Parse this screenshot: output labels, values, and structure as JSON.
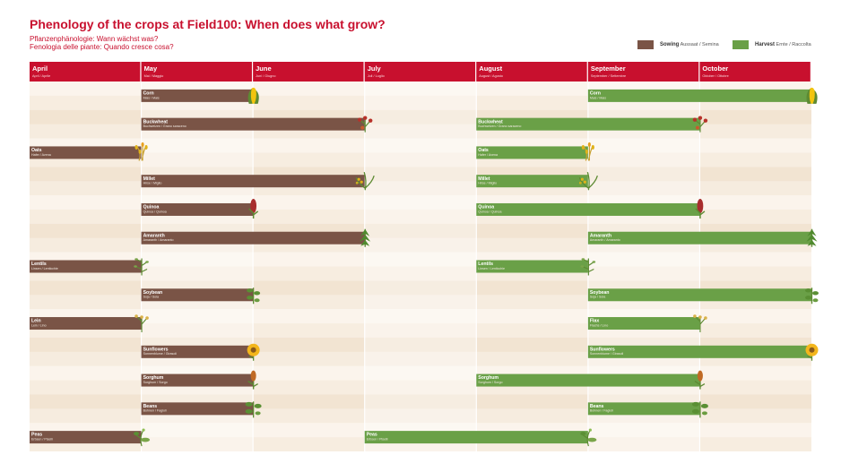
{
  "title": "Phenology of the crops at Field100: When does what grow?",
  "subtitle_de": "Pflanzenphänologie: Wann wächst was?",
  "subtitle_it": "Fenologia delle piante: Quando cresce cosa?",
  "legend": {
    "sowing": {
      "label": "Sowing",
      "translation": "Aussaat / Semina",
      "color": "#7a5446"
    },
    "harvest": {
      "label": "Harvest",
      "translation": "Ernte / Raccolta",
      "color": "#6aa047"
    }
  },
  "colors": {
    "header": "#c8102e",
    "row_light": "#fbf4ec",
    "row_dark": "#f2e4d2",
    "col_alt": "#fdf9f4"
  },
  "chart_data": {
    "type": "gantt",
    "months": [
      {
        "name": "April",
        "translation": "April / Aprile"
      },
      {
        "name": "May",
        "translation": "Mai / Maggio"
      },
      {
        "name": "June",
        "translation": "Juni / Giugno"
      },
      {
        "name": "July",
        "translation": "Juli / Luglio"
      },
      {
        "name": "August",
        "translation": "August / Agosto"
      },
      {
        "name": "September",
        "translation": "September / Settembre"
      },
      {
        "name": "October",
        "translation": "Oktober / Ottobre"
      }
    ],
    "crops": [
      {
        "name": "Corn",
        "translation": "Mais / Mais",
        "icon": "corn-icon",
        "sowing": [
          1,
          2
        ],
        "harvest": [
          5,
          7
        ]
      },
      {
        "name": "Buckwheat",
        "translation": "Buchweizen / Grano saraceno",
        "icon": "buckwheat-icon",
        "sowing": [
          1,
          3
        ],
        "harvest": [
          4,
          6
        ]
      },
      {
        "name": "Oats",
        "translation": "Hafer / Avena",
        "icon": "oats-icon",
        "sowing": [
          0,
          1
        ],
        "harvest": [
          4,
          5
        ]
      },
      {
        "name": "Millet",
        "translation": "Hirse / Miglio",
        "icon": "millet-icon",
        "sowing": [
          1,
          3
        ],
        "harvest": [
          4,
          5
        ]
      },
      {
        "name": "Quinoa",
        "translation": "Quinoa / Quinoa",
        "icon": "quinoa-icon",
        "sowing": [
          1,
          2
        ],
        "harvest": [
          4,
          6
        ]
      },
      {
        "name": "Amaranth",
        "translation": "Amaranth / Amaranto",
        "icon": "amaranth-icon",
        "sowing": [
          1,
          3
        ],
        "harvest": [
          5,
          7
        ]
      },
      {
        "name": "Lentils",
        "translation": "Linsen / Lenticchie",
        "icon": "lentils-icon",
        "sowing": [
          0,
          1
        ],
        "harvest": [
          4,
          5
        ]
      },
      {
        "name": "Soybean",
        "translation": "Soja / Soia",
        "icon": "soybean-icon",
        "sowing": [
          1,
          2
        ],
        "harvest": [
          5,
          7
        ]
      },
      {
        "name": "Lein",
        "translation": "Lein / Lino",
        "harvest_name": "Flax",
        "harvest_translation": "Flachs / Lino",
        "icon": "flax-icon",
        "sowing": [
          0,
          1
        ],
        "harvest": [
          5,
          6
        ]
      },
      {
        "name": "Sunflowers",
        "translation": "Sonnenblume / Girasoli",
        "icon": "sunflower-icon",
        "sowing": [
          1,
          2
        ],
        "harvest": [
          5,
          7
        ]
      },
      {
        "name": "Sorghum",
        "translation": "Sorghum / Sorgo",
        "icon": "sorghum-icon",
        "sowing": [
          1,
          2
        ],
        "harvest": [
          4,
          6
        ]
      },
      {
        "name": "Beans",
        "translation": "Bohnen / Fagioli",
        "icon": "beans-icon",
        "sowing": [
          1,
          2
        ],
        "harvest": [
          5,
          6
        ]
      },
      {
        "name": "Peas",
        "translation": "Erbsen / Piselli",
        "icon": "peas-icon",
        "sowing": [
          0,
          1
        ],
        "harvest": [
          3,
          5
        ]
      }
    ]
  }
}
